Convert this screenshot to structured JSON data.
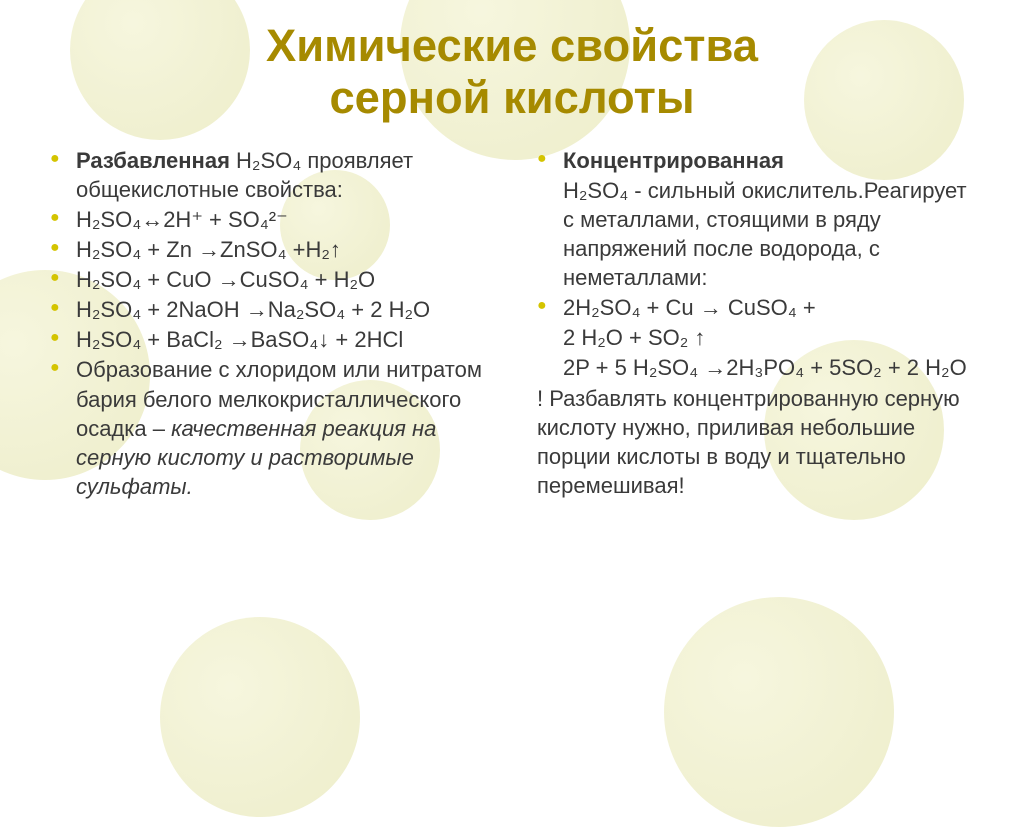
{
  "colors": {
    "title": "#a68a00",
    "bullet": "#d4c400",
    "text": "#3a3a3a",
    "background": "#ffffff",
    "circle_fill": "#e8e4b0"
  },
  "fonts": {
    "title_size_pt": 34,
    "body_size_pt": 22,
    "subhead_size_pt": 22
  },
  "title_line1": "Химические свойства",
  "title_line2": "серной кислоты",
  "left": {
    "subhead": "Разбавленная",
    "lead_rest": " H₂SO₄ проявляет общекислотные свойства:",
    "items": [
      "H₂SO₄↔2H⁺ + SO₄²⁻",
      "H₂SO₄ + Zn →ZnSO₄ +H₂↑",
      "H₂SO₄ + CuO →CuSO₄ + H₂O",
      "H₂SO₄ + 2NaOH →Na₂SO₄ + 2 H₂O",
      "H₂SO₄ + BaCl₂ →BaSO₄↓ + 2HCl"
    ],
    "tail": "Образование с хлоридом или нитратом бария белого мелкокристаллического осадка – ",
    "tail_italic": "качественная реакция на серную кислоту и растворимые сульфаты."
  },
  "right": {
    "subhead": "Концентрированная",
    "lead_rest": "H₂SO₄  - сильный окислитель.Реагирует с металлами, стоящими в ряду напряжений после водорода, с неметаллами:",
    "eq1_a": "2H₂SO₄ + Cu → CuSO₄ +",
    "eq1_b": "2 H₂O + SO₂ ↑",
    "eq2_a": "2P + 5 H₂SO₄ →2H₃PO₄ + 5SO₂ + 2 H₂O",
    "warn": "!  Разбавлять концентрированную серную кислоту нужно, приливая небольшие порции кислоты в воду и тщательно перемешивая!"
  }
}
